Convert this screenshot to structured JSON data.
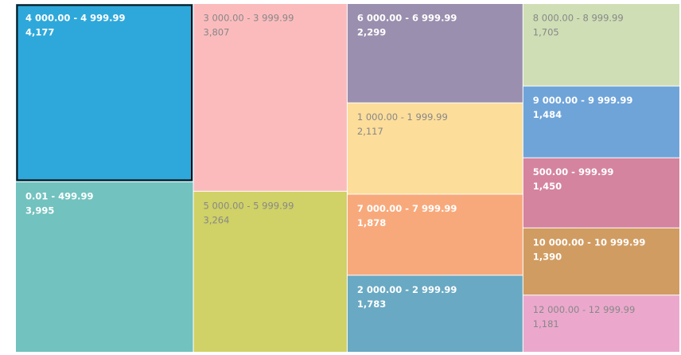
{
  "chart_data": {
    "type": "treemap",
    "categories": [
      "4 000.00 - 4 999.99",
      "0.01 - 499.99",
      "3 000.00 - 3 999.99",
      "5 000.00 - 5 999.99",
      "6 000.00 - 6 999.99",
      "1 000.00 - 1 999.99",
      "7 000.00 - 7 999.99",
      "2 000.00 - 2 999.99",
      "8 000.00 - 8 999.99",
      "9 000.00 - 9 999.99",
      "500.00 - 999.99",
      "10 000.00 - 10 999.99",
      "12 000.00 - 12 999.99"
    ],
    "values": [
      4177,
      3995,
      3807,
      3264,
      2299,
      2117,
      1878,
      1783,
      1705,
      1484,
      1450,
      1390,
      1181
    ],
    "value_labels": [
      "4,177",
      "3,995",
      "3,807",
      "3,264",
      "2,299",
      "2,117",
      "1,878",
      "1,783",
      "1,705",
      "1,484",
      "1,450",
      "1,390",
      "1,181"
    ],
    "colors": [
      "#2ea8da",
      "#72c2bf",
      "#fbbbbd",
      "#d0d166",
      "#9a8fae",
      "#fcdd9a",
      "#f8a97b",
      "#69a9c3",
      "#cfdeb5",
      "#6fa4d9",
      "#d4849f",
      "#d19c62",
      "#eba8cc"
    ],
    "label_colors": [
      "#ffffff",
      "#ffffff",
      "#888888",
      "#888888",
      "#ffffff",
      "#888888",
      "#ffffff",
      "#ffffff",
      "#888888",
      "#ffffff",
      "#ffffff",
      "#ffffff",
      "#888888"
    ]
  }
}
